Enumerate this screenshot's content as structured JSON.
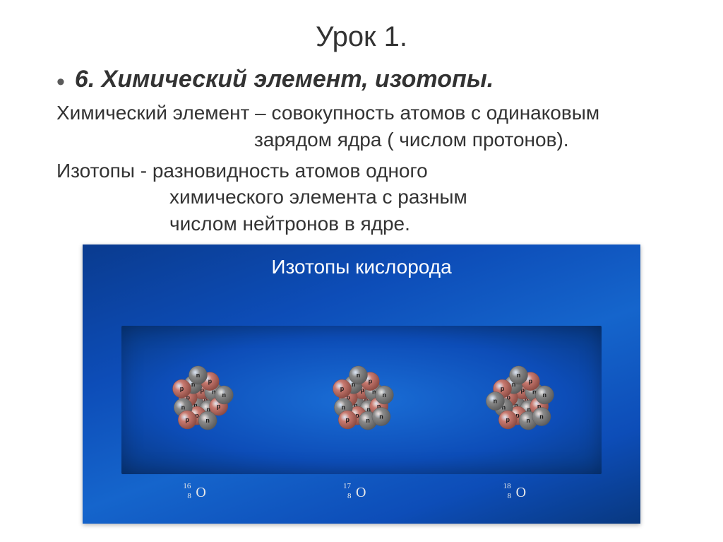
{
  "title": "Урок 1.",
  "subtitle": "6. Химический элемент, изотопы.",
  "def_element_1": "Химический элемент – совокупность атомов с одинаковым",
  "def_element_2": "зарядом ядра ( числом протонов).",
  "def_isotope_1": "Изотопы -  разновидность атомов одного",
  "def_isotope_2": "химического элемента с разным",
  "def_isotope_3": "числом нейтронов в ядре.",
  "image_title": "Изотопы кислорода",
  "isotopes": [
    {
      "mass": "16",
      "z": "8",
      "symbol": "О",
      "protons": 8,
      "neutrons": 8
    },
    {
      "mass": "17",
      "z": "8",
      "symbol": "О",
      "protons": 8,
      "neutrons": 9
    },
    {
      "mass": "18",
      "z": "8",
      "symbol": "О",
      "protons": 8,
      "neutrons": 10
    }
  ],
  "colors": {
    "proton": "#c97a70",
    "proton_dark": "#8a4a42",
    "neutron": "#8a8a8a",
    "neutron_dark": "#5a5a5a",
    "slide_bg": "#0d4db8",
    "text": "#333333"
  }
}
